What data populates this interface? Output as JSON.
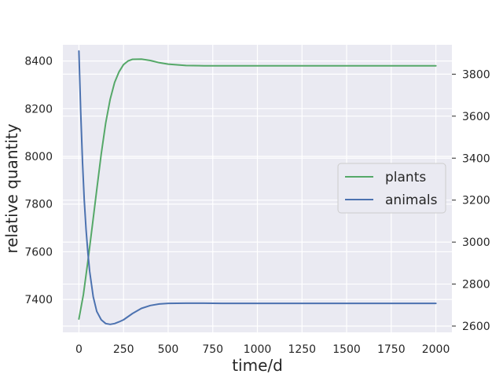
{
  "chart_data": {
    "type": "line",
    "xlabel": "time/d",
    "ylabel": "relative quantity",
    "xlim": [
      -90,
      2090
    ],
    "ylim_left": [
      7262,
      8468
    ],
    "ylim_right": [
      2570,
      3940
    ],
    "x_ticks": [
      0,
      250,
      500,
      750,
      1000,
      1250,
      1500,
      1750,
      2000
    ],
    "y_ticks_left": [
      7400,
      7600,
      7800,
      8000,
      8200,
      8400
    ],
    "y_ticks_right": [
      2600,
      2800,
      3000,
      3200,
      3400,
      3600,
      3800
    ],
    "grid": true,
    "legend_position": "center-right",
    "series": [
      {
        "name": "plants",
        "axis": "left",
        "color": "#55a868",
        "x": [
          0,
          25,
          50,
          75,
          100,
          125,
          150,
          175,
          200,
          225,
          250,
          275,
          300,
          350,
          400,
          450,
          500,
          600,
          700,
          800,
          1000,
          1500,
          2000
        ],
        "y": [
          7318,
          7420,
          7560,
          7710,
          7860,
          8010,
          8140,
          8240,
          8310,
          8355,
          8385,
          8400,
          8407,
          8408,
          8402,
          8393,
          8387,
          8381,
          8380,
          8380,
          8380,
          8380,
          8380
        ]
      },
      {
        "name": "animals",
        "axis": "right",
        "color": "#4c72b0",
        "x": [
          0,
          10,
          20,
          30,
          40,
          50,
          60,
          80,
          100,
          125,
          150,
          175,
          200,
          225,
          250,
          300,
          350,
          400,
          450,
          500,
          600,
          700,
          800,
          1000,
          1500,
          2000
        ],
        "y": [
          3910,
          3620,
          3380,
          3200,
          3060,
          2950,
          2860,
          2740,
          2670,
          2630,
          2612,
          2608,
          2612,
          2620,
          2630,
          2660,
          2684,
          2698,
          2705,
          2708,
          2709,
          2709,
          2708,
          2708,
          2708,
          2708
        ]
      }
    ]
  }
}
